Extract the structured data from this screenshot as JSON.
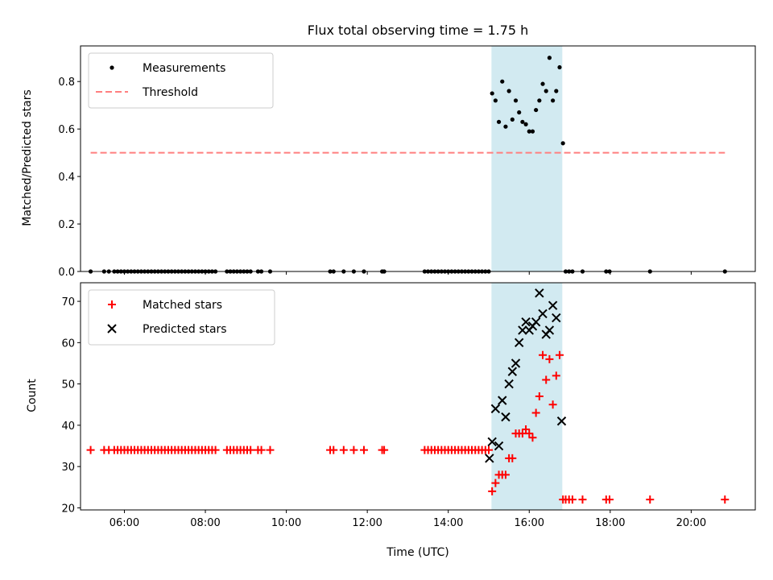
{
  "title": "Flux total observing time = 1.75 h",
  "shade_color": "#add8e6",
  "chart_data": [
    {
      "type": "scatter",
      "ylabel": "Matched/Predicted stars",
      "xlabel": "",
      "xlim": [
        "04:55",
        "21:35"
      ],
      "ylim": [
        0,
        0.95
      ],
      "yticks": [
        0.0,
        0.2,
        0.4,
        0.6,
        0.8
      ],
      "ytick_labels": [
        "0.0",
        "0.2",
        "0.4",
        "0.6",
        "0.8"
      ],
      "xticks": [
        "06:00",
        "08:00",
        "10:00",
        "12:00",
        "14:00",
        "16:00",
        "18:00",
        "20:00"
      ],
      "shaded_span": [
        "15:04",
        "16:49"
      ],
      "legend": {
        "position": "upper-left",
        "entries": [
          "Measurements",
          "Threshold"
        ]
      },
      "series": [
        {
          "name": "Threshold",
          "style": "dashed-line",
          "color": "#ff7f7f",
          "x": [
            "05:10",
            "20:50"
          ],
          "y": [
            0.5,
            0.5
          ]
        },
        {
          "name": "Measurements",
          "style": "dot",
          "color": "#000000",
          "points": [
            [
              "05:10",
              0
            ],
            [
              "05:30",
              0
            ],
            [
              "05:37",
              0
            ],
            [
              "05:45",
              0
            ],
            [
              "05:50",
              0
            ],
            [
              "05:55",
              0
            ],
            [
              "06:00",
              0
            ],
            [
              "06:05",
              0
            ],
            [
              "06:10",
              0
            ],
            [
              "06:15",
              0
            ],
            [
              "06:20",
              0
            ],
            [
              "06:25",
              0
            ],
            [
              "06:30",
              0
            ],
            [
              "06:35",
              0
            ],
            [
              "06:40",
              0
            ],
            [
              "06:45",
              0
            ],
            [
              "06:50",
              0
            ],
            [
              "06:55",
              0
            ],
            [
              "07:00",
              0
            ],
            [
              "07:05",
              0
            ],
            [
              "07:10",
              0
            ],
            [
              "07:15",
              0
            ],
            [
              "07:20",
              0
            ],
            [
              "07:25",
              0
            ],
            [
              "07:30",
              0
            ],
            [
              "07:35",
              0
            ],
            [
              "07:40",
              0
            ],
            [
              "07:45",
              0
            ],
            [
              "07:50",
              0
            ],
            [
              "07:55",
              0
            ],
            [
              "08:00",
              0
            ],
            [
              "08:05",
              0
            ],
            [
              "08:10",
              0
            ],
            [
              "08:15",
              0
            ],
            [
              "08:32",
              0
            ],
            [
              "08:37",
              0
            ],
            [
              "08:42",
              0
            ],
            [
              "08:47",
              0
            ],
            [
              "08:52",
              0
            ],
            [
              "08:57",
              0
            ],
            [
              "09:02",
              0
            ],
            [
              "09:07",
              0
            ],
            [
              "09:18",
              0
            ],
            [
              "09:23",
              0
            ],
            [
              "09:36",
              0
            ],
            [
              "11:05",
              0
            ],
            [
              "11:10",
              0
            ],
            [
              "11:25",
              0
            ],
            [
              "11:40",
              0
            ],
            [
              "11:55",
              0
            ],
            [
              "12:22",
              0
            ],
            [
              "12:25",
              0
            ],
            [
              "13:25",
              0
            ],
            [
              "13:30",
              0
            ],
            [
              "13:35",
              0
            ],
            [
              "13:40",
              0
            ],
            [
              "13:45",
              0
            ],
            [
              "13:50",
              0
            ],
            [
              "13:55",
              0
            ],
            [
              "14:00",
              0
            ],
            [
              "14:05",
              0
            ],
            [
              "14:10",
              0
            ],
            [
              "14:15",
              0
            ],
            [
              "14:20",
              0
            ],
            [
              "14:25",
              0
            ],
            [
              "14:30",
              0
            ],
            [
              "14:35",
              0
            ],
            [
              "14:40",
              0
            ],
            [
              "14:45",
              0
            ],
            [
              "14:50",
              0
            ],
            [
              "14:55",
              0
            ],
            [
              "15:00",
              0
            ],
            [
              "15:05",
              0.75
            ],
            [
              "15:10",
              0.72
            ],
            [
              "15:15",
              0.63
            ],
            [
              "15:20",
              0.8
            ],
            [
              "15:25",
              0.61
            ],
            [
              "15:30",
              0.76
            ],
            [
              "15:35",
              0.64
            ],
            [
              "15:40",
              0.72
            ],
            [
              "15:45",
              0.67
            ],
            [
              "15:50",
              0.63
            ],
            [
              "15:55",
              0.62
            ],
            [
              "16:00",
              0.59
            ],
            [
              "16:05",
              0.59
            ],
            [
              "16:10",
              0.68
            ],
            [
              "16:15",
              0.72
            ],
            [
              "16:20",
              0.79
            ],
            [
              "16:25",
              0.76
            ],
            [
              "16:30",
              0.9
            ],
            [
              "16:35",
              0.72
            ],
            [
              "16:40",
              0.76
            ],
            [
              "16:45",
              0.86
            ],
            [
              "16:50",
              0.54
            ],
            [
              "16:54",
              0
            ],
            [
              "16:59",
              0
            ],
            [
              "17:04",
              0
            ],
            [
              "17:19",
              0
            ],
            [
              "17:54",
              0
            ],
            [
              "17:59",
              0
            ],
            [
              "18:59",
              0
            ],
            [
              "20:50",
              0
            ]
          ]
        }
      ]
    },
    {
      "type": "scatter",
      "ylabel": "Count",
      "xlabel": "Time (UTC)",
      "xlim": [
        "04:55",
        "21:35"
      ],
      "ylim": [
        19.5,
        74.5
      ],
      "yticks": [
        20,
        30,
        40,
        50,
        60,
        70
      ],
      "ytick_labels": [
        "20",
        "30",
        "40",
        "50",
        "60",
        "70"
      ],
      "xticks": [
        "06:00",
        "08:00",
        "10:00",
        "12:00",
        "14:00",
        "16:00",
        "18:00",
        "20:00"
      ],
      "xtick_labels": [
        "06:00",
        "08:00",
        "10:00",
        "12:00",
        "14:00",
        "16:00",
        "18:00",
        "20:00"
      ],
      "shaded_span": [
        "15:04",
        "16:49"
      ],
      "legend": {
        "position": "upper-left",
        "entries": [
          "Matched stars",
          "Predicted stars"
        ]
      },
      "series": [
        {
          "name": "Matched stars",
          "marker": "plus",
          "color": "#ff0000",
          "points": [
            [
              "05:10",
              34
            ],
            [
              "05:30",
              34
            ],
            [
              "05:37",
              34
            ],
            [
              "05:45",
              34
            ],
            [
              "05:50",
              34
            ],
            [
              "05:55",
              34
            ],
            [
              "06:00",
              34
            ],
            [
              "06:05",
              34
            ],
            [
              "06:10",
              34
            ],
            [
              "06:15",
              34
            ],
            [
              "06:20",
              34
            ],
            [
              "06:25",
              34
            ],
            [
              "06:30",
              34
            ],
            [
              "06:35",
              34
            ],
            [
              "06:40",
              34
            ],
            [
              "06:45",
              34
            ],
            [
              "06:50",
              34
            ],
            [
              "06:55",
              34
            ],
            [
              "07:00",
              34
            ],
            [
              "07:05",
              34
            ],
            [
              "07:10",
              34
            ],
            [
              "07:15",
              34
            ],
            [
              "07:20",
              34
            ],
            [
              "07:25",
              34
            ],
            [
              "07:30",
              34
            ],
            [
              "07:35",
              34
            ],
            [
              "07:40",
              34
            ],
            [
              "07:45",
              34
            ],
            [
              "07:50",
              34
            ],
            [
              "07:55",
              34
            ],
            [
              "08:00",
              34
            ],
            [
              "08:05",
              34
            ],
            [
              "08:10",
              34
            ],
            [
              "08:15",
              34
            ],
            [
              "08:32",
              34
            ],
            [
              "08:37",
              34
            ],
            [
              "08:42",
              34
            ],
            [
              "08:47",
              34
            ],
            [
              "08:52",
              34
            ],
            [
              "08:57",
              34
            ],
            [
              "09:02",
              34
            ],
            [
              "09:07",
              34
            ],
            [
              "09:18",
              34
            ],
            [
              "09:23",
              34
            ],
            [
              "09:36",
              34
            ],
            [
              "11:05",
              34
            ],
            [
              "11:10",
              34
            ],
            [
              "11:25",
              34
            ],
            [
              "11:40",
              34
            ],
            [
              "11:55",
              34
            ],
            [
              "12:22",
              34
            ],
            [
              "12:25",
              34
            ],
            [
              "13:25",
              34
            ],
            [
              "13:30",
              34
            ],
            [
              "13:35",
              34
            ],
            [
              "13:40",
              34
            ],
            [
              "13:45",
              34
            ],
            [
              "13:50",
              34
            ],
            [
              "13:55",
              34
            ],
            [
              "14:00",
              34
            ],
            [
              "14:05",
              34
            ],
            [
              "14:10",
              34
            ],
            [
              "14:15",
              34
            ],
            [
              "14:20",
              34
            ],
            [
              "14:25",
              34
            ],
            [
              "14:30",
              34
            ],
            [
              "14:35",
              34
            ],
            [
              "14:40",
              34
            ],
            [
              "14:45",
              34
            ],
            [
              "14:50",
              34
            ],
            [
              "14:55",
              34
            ],
            [
              "15:00",
              34
            ],
            [
              "15:05",
              24
            ],
            [
              "15:10",
              26
            ],
            [
              "15:15",
              28
            ],
            [
              "15:20",
              28
            ],
            [
              "15:25",
              28
            ],
            [
              "15:30",
              32
            ],
            [
              "15:35",
              32
            ],
            [
              "15:40",
              38
            ],
            [
              "15:45",
              38
            ],
            [
              "15:50",
              38
            ],
            [
              "15:55",
              39
            ],
            [
              "16:00",
              38
            ],
            [
              "16:05",
              37
            ],
            [
              "16:10",
              43
            ],
            [
              "16:15",
              47
            ],
            [
              "16:20",
              57
            ],
            [
              "16:25",
              51
            ],
            [
              "16:30",
              56
            ],
            [
              "16:35",
              45
            ],
            [
              "16:40",
              52
            ],
            [
              "16:45",
              57
            ],
            [
              "16:50",
              22
            ],
            [
              "16:54",
              22
            ],
            [
              "16:59",
              22
            ],
            [
              "17:04",
              22
            ],
            [
              "17:19",
              22
            ],
            [
              "17:54",
              22
            ],
            [
              "17:59",
              22
            ],
            [
              "18:59",
              22
            ],
            [
              "20:50",
              22
            ]
          ]
        },
        {
          "name": "Predicted stars",
          "marker": "x",
          "color": "#000000",
          "points": [
            [
              "15:01",
              32
            ],
            [
              "15:05",
              36
            ],
            [
              "15:10",
              44
            ],
            [
              "15:15",
              35
            ],
            [
              "15:20",
              46
            ],
            [
              "15:25",
              42
            ],
            [
              "15:30",
              50
            ],
            [
              "15:35",
              53
            ],
            [
              "15:40",
              55
            ],
            [
              "15:45",
              60
            ],
            [
              "15:50",
              63
            ],
            [
              "15:55",
              65
            ],
            [
              "16:00",
              63
            ],
            [
              "16:05",
              64
            ],
            [
              "16:10",
              65
            ],
            [
              "16:15",
              72
            ],
            [
              "16:20",
              67
            ],
            [
              "16:25",
              62
            ],
            [
              "16:30",
              63
            ],
            [
              "16:35",
              69
            ],
            [
              "16:40",
              66
            ],
            [
              "16:48",
              41
            ]
          ]
        }
      ]
    }
  ]
}
